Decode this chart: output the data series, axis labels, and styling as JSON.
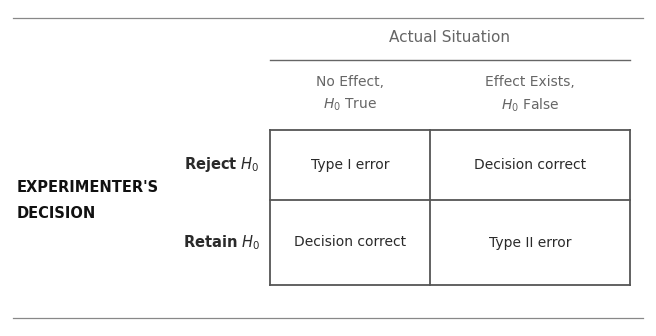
{
  "bg_color": "#ffffff",
  "actual_situation_label": "Actual Situation",
  "col_header_line1": [
    "No Effect,",
    "Effect Exists,"
  ],
  "col_header_line2": [
    "$H_0$ True",
    "$H_0$ False"
  ],
  "row_headers": [
    "Reject $H_0$",
    "Retain $H_0$"
  ],
  "experimenter_line1": "EXPERIMENTER'S",
  "experimenter_line2": "DECISION",
  "cells": [
    [
      "Type I error",
      "Decision correct"
    ],
    [
      "Decision correct",
      "Type II error"
    ]
  ],
  "header_color": "#666666",
  "cell_text_color": "#2a2a2a",
  "row_header_color": "#2a2a2a",
  "experimenter_color": "#111111",
  "border_color": "#555555",
  "top_bottom_line_color": "#888888"
}
